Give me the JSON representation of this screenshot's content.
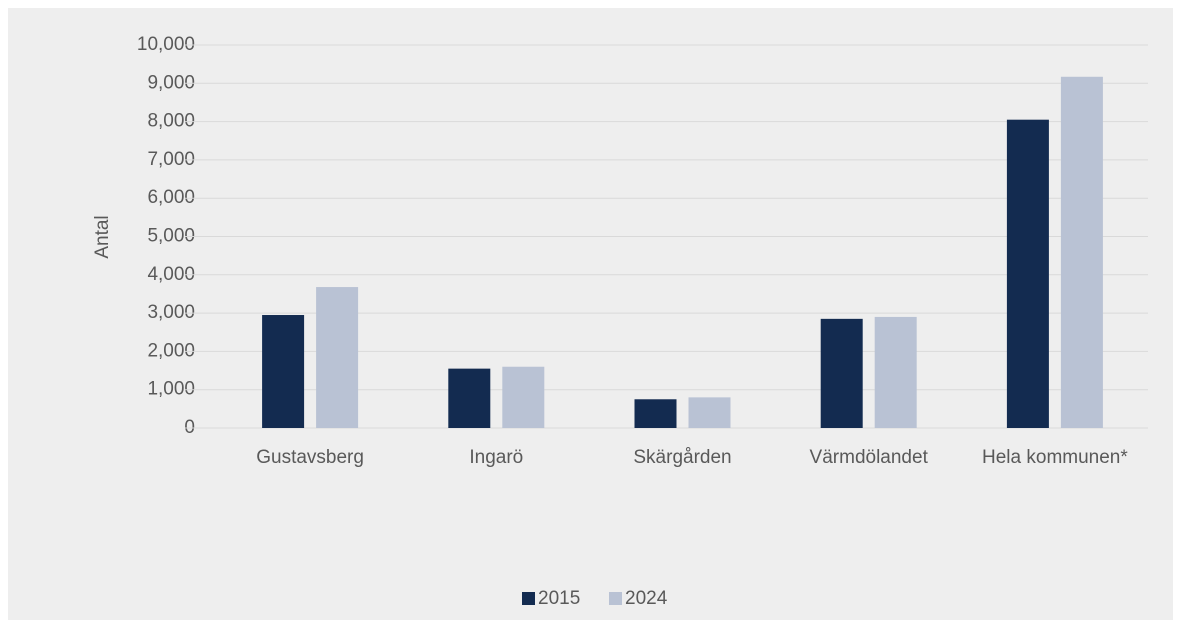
{
  "chart_data": {
    "type": "bar",
    "ylabel": "Antal",
    "categories": [
      "Gustavsberg",
      "Ingarö",
      "Skärgården",
      "Värmdölandet",
      "Hela kommunen*"
    ],
    "series": [
      {
        "name": "2015",
        "color": "#132b50",
        "values": [
          2950,
          1550,
          750,
          2850,
          8050
        ]
      },
      {
        "name": "2024",
        "color": "#b9c2d4",
        "values": [
          3680,
          1600,
          800,
          2900,
          9170
        ]
      }
    ],
    "ylim": [
      0,
      10000
    ],
    "yticks": [
      0,
      {
        "value": 1000,
        "label": "1,000"
      },
      {
        "value": 2000,
        "label": "2,000"
      },
      {
        "value": 3000,
        "label": "3,000"
      },
      {
        "value": 4000,
        "label": "4,000"
      },
      {
        "value": 5000,
        "label": "5,000"
      },
      {
        "value": 6000,
        "label": "6,000"
      },
      {
        "value": 7000,
        "label": "7,000"
      },
      {
        "value": 8000,
        "label": "8,000"
      },
      {
        "value": 9000,
        "label": "9,000"
      },
      {
        "value": 10000,
        "label": "10,000"
      }
    ],
    "grid": true,
    "legend": "bottom"
  }
}
